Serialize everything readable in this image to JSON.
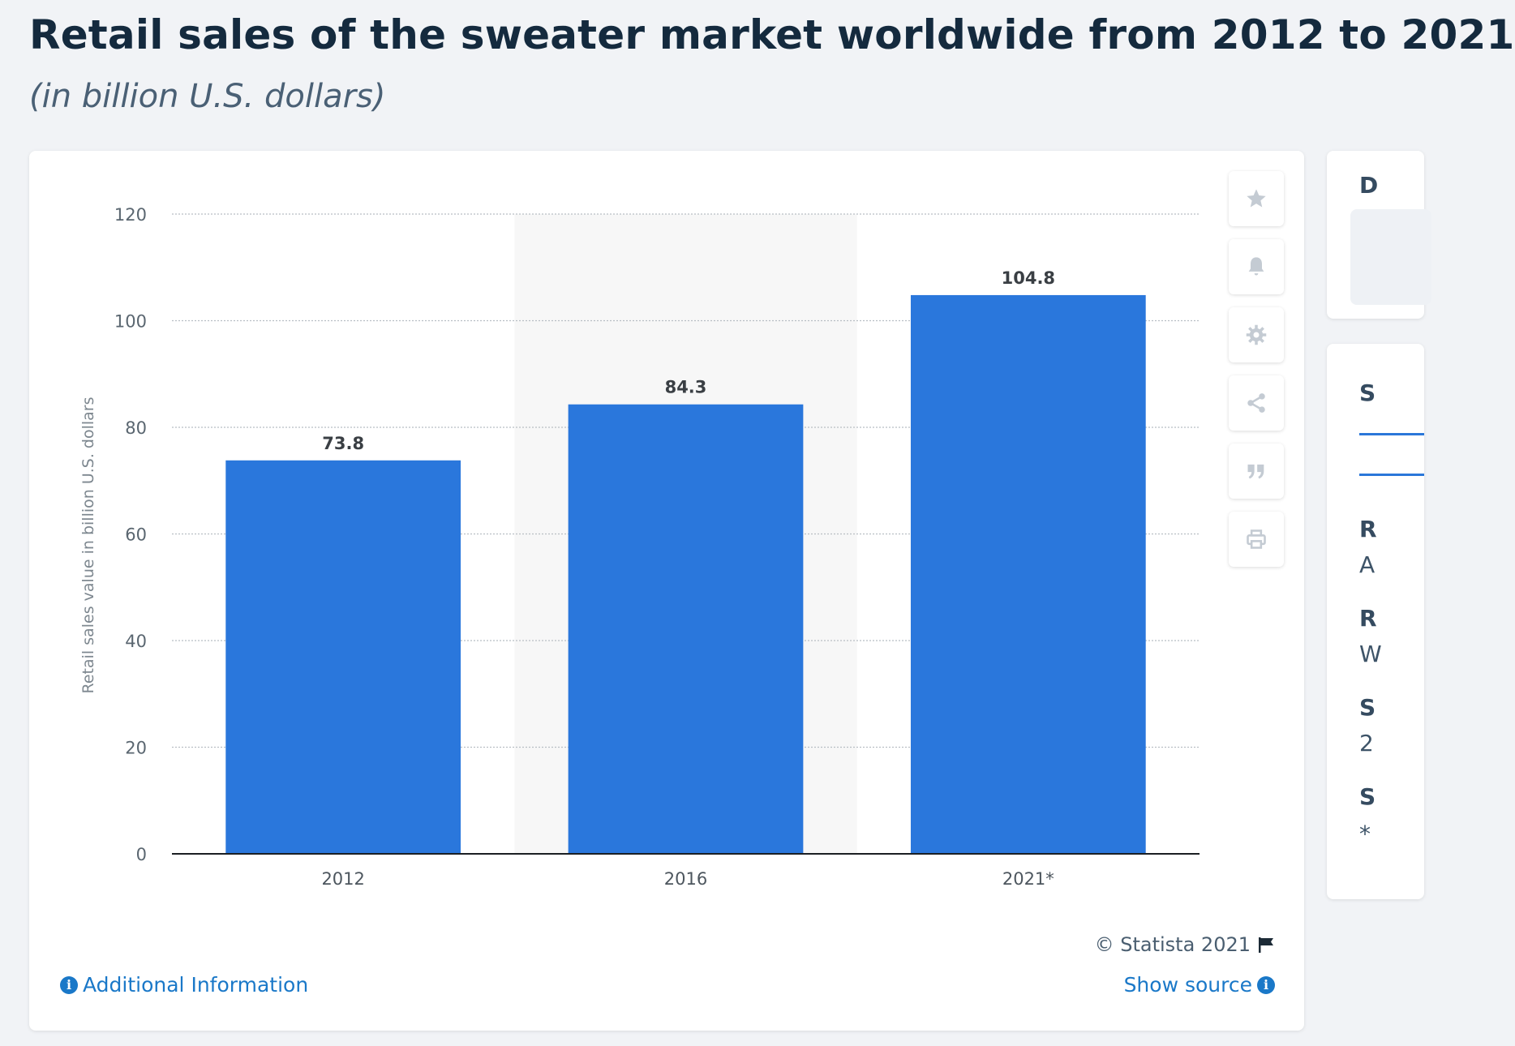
{
  "header": {
    "title": "Retail sales of the sweater market worldwide from 2012 to 2021",
    "subtitle": "(in billion U.S. dollars)"
  },
  "toolbar": {
    "icons": [
      "star-icon",
      "bell-icon",
      "gear-icon",
      "share-icon",
      "quote-icon",
      "print-icon"
    ]
  },
  "side_panel": {
    "top_fragment": "D",
    "fragments": [
      "S",
      "R",
      "A",
      "R",
      "W",
      "S",
      "2",
      "S",
      "*"
    ]
  },
  "footer": {
    "credit": "© Statista 2021",
    "additional_info": "Additional Information",
    "show_source": "Show source"
  },
  "colors": {
    "bar": "#2a77dc",
    "link": "#1a78c8",
    "highlight_band": "#f7f7f7"
  },
  "chart_data": {
    "type": "bar",
    "categories": [
      "2012",
      "2016",
      "2021*"
    ],
    "values": [
      73.8,
      84.3,
      104.8
    ],
    "title": "Retail sales of the sweater market worldwide from 2012 to 2021",
    "subtitle": "(in billion U.S. dollars)",
    "xlabel": "",
    "ylabel": "Retail sales value in billion U.S. dollars",
    "ylim": [
      0,
      120
    ],
    "yticks": [
      0,
      20,
      40,
      60,
      80,
      100,
      120
    ],
    "grid": true,
    "highlighted_category": "2016"
  }
}
